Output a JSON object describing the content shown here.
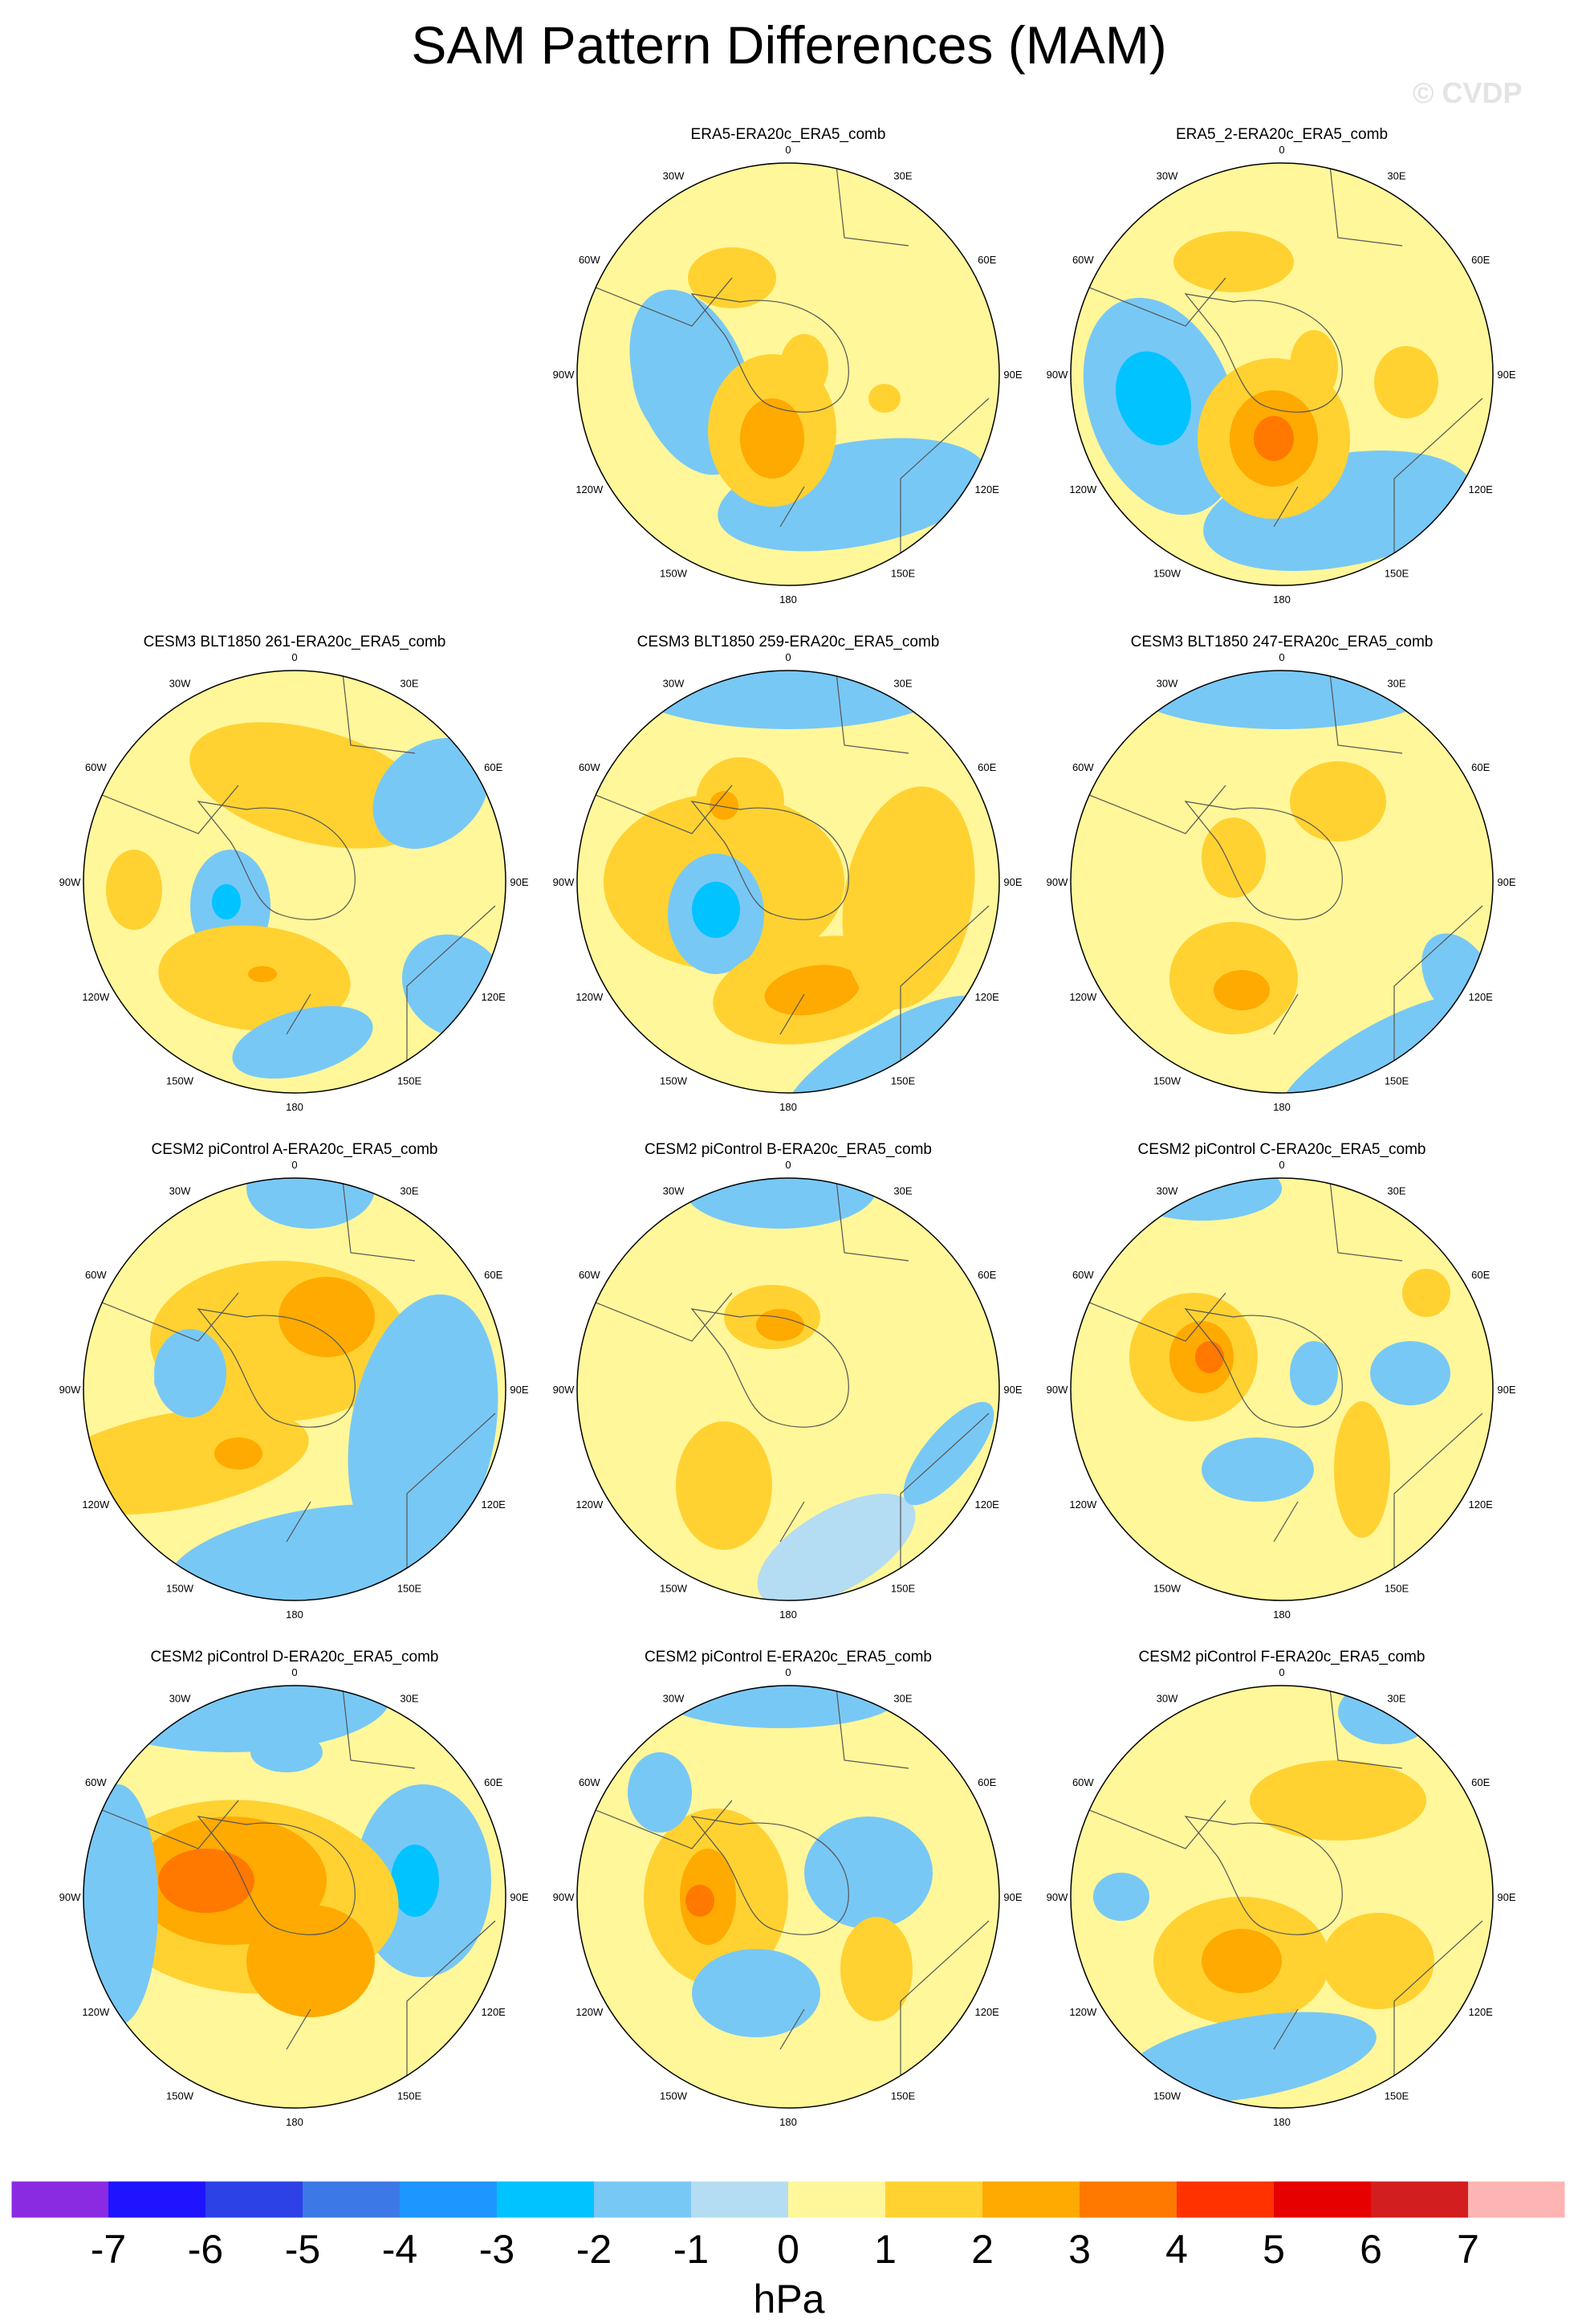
{
  "title": "SAM Pattern Differences (MAM)",
  "watermark": "© CVDP",
  "chart_data": {
    "type": "polar-contour-map",
    "projection": "south polar stereographic",
    "variable": "SAM pattern difference",
    "units": "hPa",
    "colorbar": {
      "label": "hPa",
      "levels": [
        -7,
        -6,
        -5,
        -4,
        -3,
        -2,
        -1,
        0,
        1,
        2,
        3,
        4,
        5,
        6,
        7
      ],
      "colors": [
        "#8a2be2",
        "#1e14ff",
        "#2d41e6",
        "#3c78e6",
        "#1e96ff",
        "#00c3ff",
        "#78c8f5",
        "#b4dcf2",
        "#fff79a",
        "#ffd232",
        "#ffaa00",
        "#ff7800",
        "#ff3200",
        "#e60000",
        "#d21e1e",
        "#ffb4b4"
      ]
    },
    "longitude_labels": [
      "0",
      "30E",
      "60E",
      "90E",
      "120E",
      "150E",
      "180",
      "150W",
      "120W",
      "90W",
      "60W",
      "30W"
    ],
    "panels": [
      {
        "title": "ERA5-ERA20c_ERA5_comb",
        "min": -1.5,
        "max": 2.6
      },
      {
        "title": "ERA5_2-ERA20c_ERA5_comb",
        "min": -2.2,
        "max": 3.2
      },
      {
        "title": "CESM3 BLT1850 261-ERA20c_ERA5_comb",
        "min": -2.1,
        "max": 2.3
      },
      {
        "title": "CESM3 BLT1850 259-ERA20c_ERA5_comb",
        "min": -2.4,
        "max": 2.5
      },
      {
        "title": "CESM3 BLT1850 247-ERA20c_ERA5_comb",
        "min": -1.2,
        "max": 2.6
      },
      {
        "title": "CESM2 piControl A-ERA20c_ERA5_comb",
        "min": -1.6,
        "max": 2.6
      },
      {
        "title": "CESM2 piControl B-ERA20c_ERA5_comb",
        "min": -1.4,
        "max": 2.5
      },
      {
        "title": "CESM2 piControl C-ERA20c_ERA5_comb",
        "min": -1.5,
        "max": 3.3
      },
      {
        "title": "CESM2 piControl D-ERA20c_ERA5_comb",
        "min": -2.3,
        "max": 3.6
      },
      {
        "title": "CESM2 piControl E-ERA20c_ERA5_comb",
        "min": -1.3,
        "max": 3.1
      },
      {
        "title": "CESM2 piControl F-ERA20c_ERA5_comb",
        "min": -1.5,
        "max": 2.6
      }
    ]
  }
}
